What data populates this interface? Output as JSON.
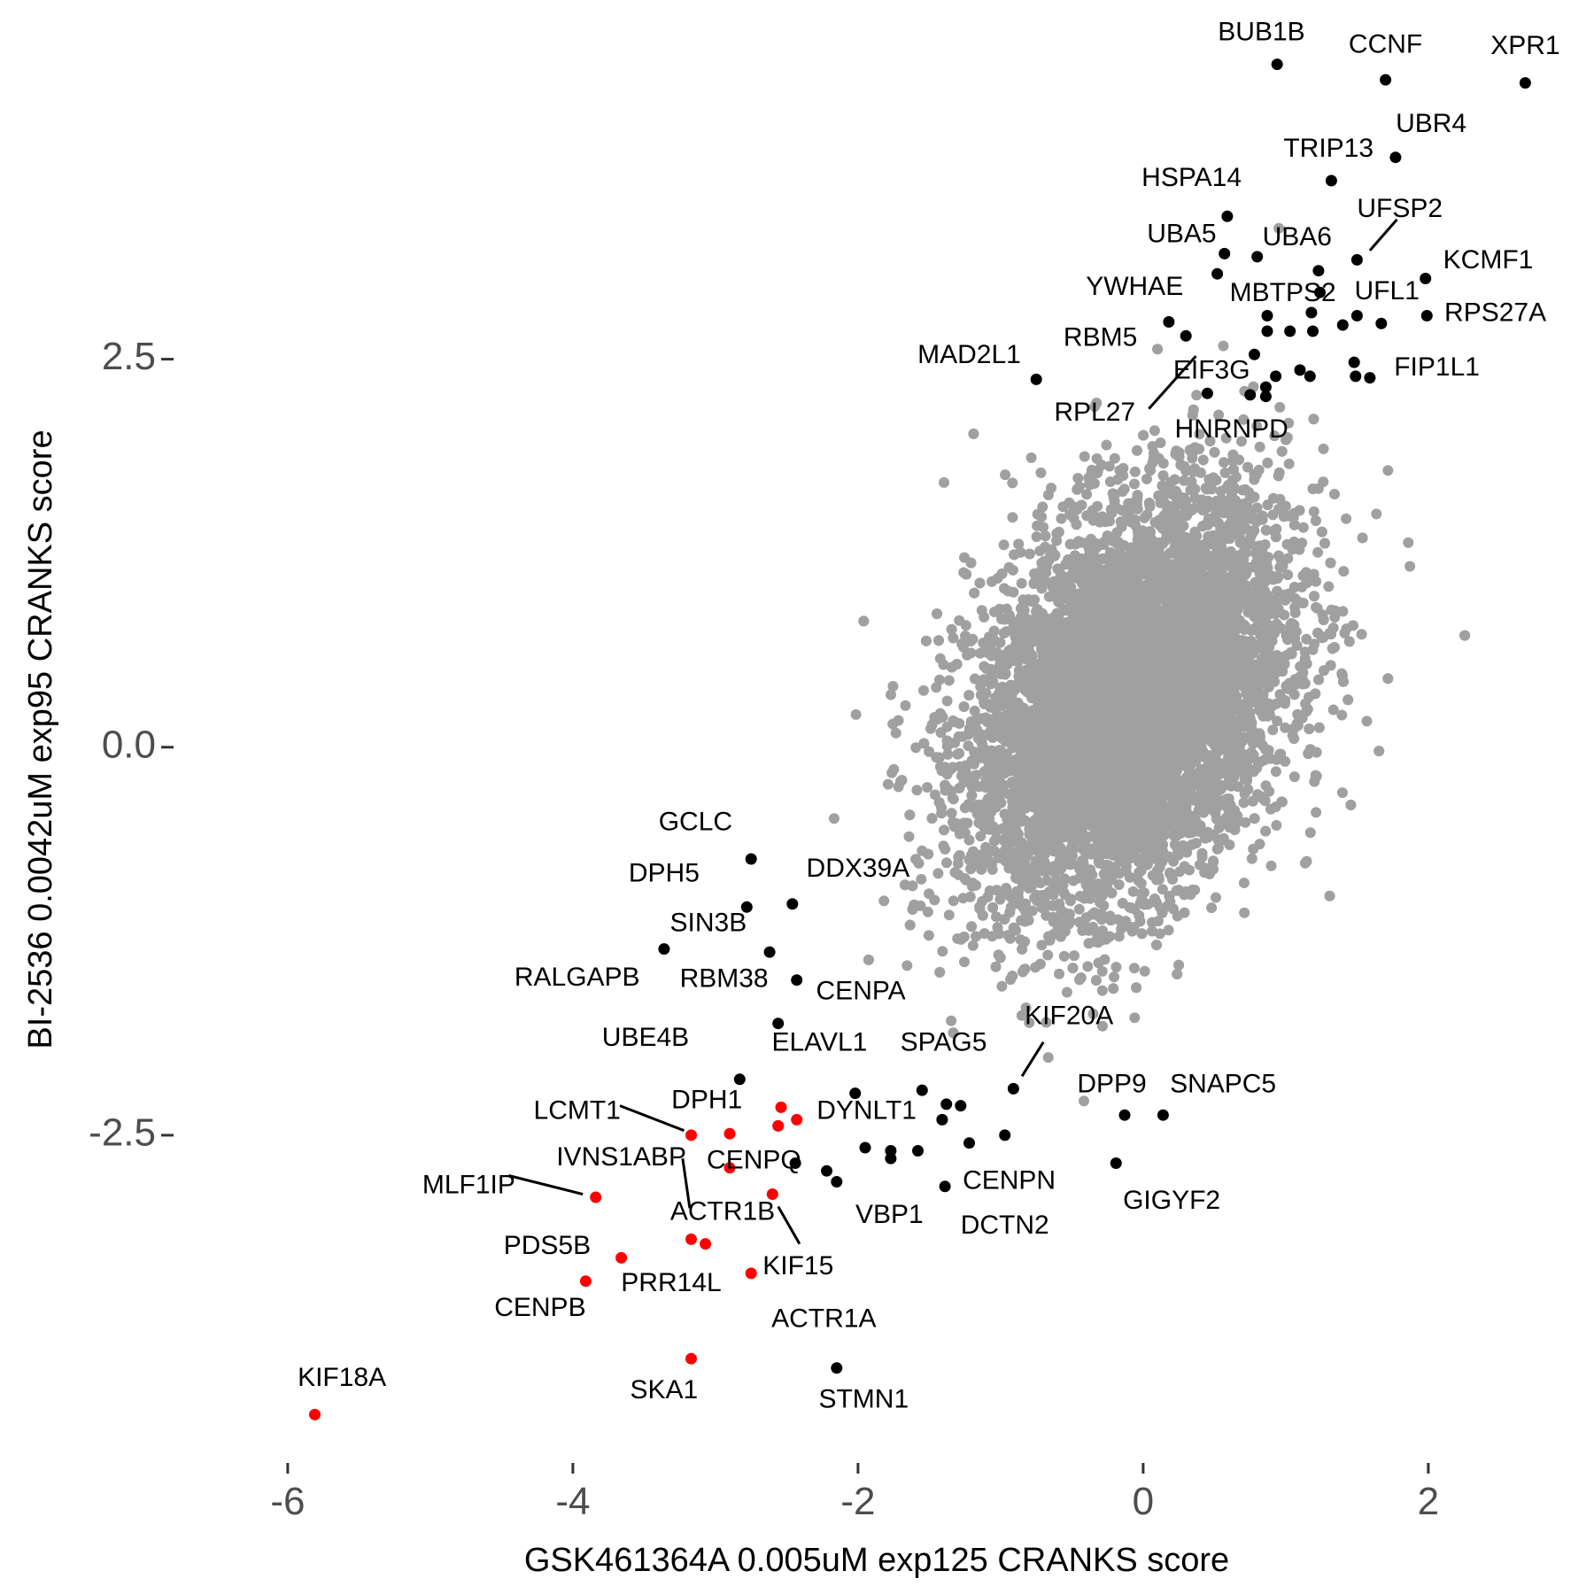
{
  "chart_data": {
    "type": "scatter",
    "xlabel": "GSK461364A 0.005uM exp125 CRANKS score",
    "ylabel": "BI-2536 0.0042uM exp95 CRANKS score",
    "xlim": [
      -6.9,
      3.1
    ],
    "ylim": [
      -4.6,
      4.7
    ],
    "x_ticks": [
      -6,
      -4,
      -2,
      0,
      2
    ],
    "x_tick_labels": [
      "-6",
      "-4",
      "-2",
      "0",
      "2"
    ],
    "y_ticks": [
      -2.5,
      0.0,
      2.5
    ],
    "y_tick_labels": [
      "-2.5",
      "0.0",
      "2.5"
    ],
    "grid": false,
    "legend": "none",
    "colors": {
      "background_genes": "#a0a0a0",
      "positive_hits": "#000000",
      "negative_hits": "#ff0000"
    },
    "background_cloud": {
      "description_points": "dense cloud of all other genes",
      "center": [
        -0.1,
        0.3
      ],
      "sd": [
        0.55,
        0.65
      ],
      "correlation": 0.35,
      "count": 9000,
      "color": "#a0a0a0"
    },
    "series": [
      {
        "group": "positive",
        "color": "#000000",
        "points": [
          {
            "label": "BUB1B",
            "x": 0.94,
            "y": 4.4
          },
          {
            "label": "CCNF",
            "x": 1.7,
            "y": 4.3
          },
          {
            "label": "XPR1",
            "x": 2.68,
            "y": 4.28
          },
          {
            "label": "UBR4",
            "x": 1.77,
            "y": 3.8
          },
          {
            "label": "TRIP13",
            "x": 1.32,
            "y": 3.65
          },
          {
            "label": "HSPA14",
            "x": 0.59,
            "y": 3.42
          },
          {
            "label": "UFSP2",
            "x": 1.5,
            "y": 3.14
          },
          {
            "label": "UBA5",
            "x": 0.57,
            "y": 3.18
          },
          {
            "label": "UBA6",
            "x": 0.8,
            "y": 3.16
          },
          {
            "label": "KCMF1",
            "x": 1.98,
            "y": 3.02
          },
          {
            "label": "YWHAE",
            "x": 0.52,
            "y": 3.05
          },
          {
            "label": "MBTPS2",
            "x": 1.23,
            "y": 3.07
          },
          {
            "label": "UFL1",
            "x": 1.5,
            "y": 2.78
          },
          {
            "label": "RPS27A",
            "x": 1.99,
            "y": 2.78
          },
          {
            "label": "RBM5",
            "x": 0.18,
            "y": 2.74
          },
          {
            "label": "MAD2L1",
            "x": -0.75,
            "y": 2.37
          },
          {
            "label": "EIF3G",
            "x": 0.3,
            "y": 2.65
          },
          {
            "label": "FIP1L1",
            "x": 1.48,
            "y": 2.48
          },
          {
            "label": "RPL27",
            "x": 0.45,
            "y": 2.28
          },
          {
            "label": "HNRNPD",
            "x": 0.75,
            "y": 2.27
          },
          {
            "label": "GCLC",
            "x": -2.75,
            "y": -0.72
          },
          {
            "label": "DPH5",
            "x": -2.78,
            "y": -1.03
          },
          {
            "label": "DDX39A",
            "x": -2.46,
            "y": -1.01
          },
          {
            "label": "SIN3B",
            "x": -2.62,
            "y": -1.32
          },
          {
            "label": "RALGAPB",
            "x": -3.36,
            "y": -1.3
          },
          {
            "label": "RBM38",
            "x": -2.43,
            "y": -1.5
          },
          {
            "label": "CENPA",
            "x": -2.56,
            "y": -1.78
          },
          {
            "label": "UBE4B",
            "x": -2.83,
            "y": -2.14
          },
          {
            "label": "ELAVL1",
            "x": -2.02,
            "y": -2.23
          },
          {
            "label": "SPAG5",
            "x": -1.55,
            "y": -2.21
          },
          {
            "label": "KIF20A",
            "x": -0.91,
            "y": -2.2
          },
          {
            "label": "DYNLT1",
            "x": -1.95,
            "y": -2.58
          },
          {
            "label": "DPP9",
            "x": -0.13,
            "y": -2.37
          },
          {
            "label": "SNAPC5",
            "x": 0.14,
            "y": -2.37
          },
          {
            "label": "CENPN",
            "x": -0.97,
            "y": -2.5
          },
          {
            "label": "GIGYF2",
            "x": -0.19,
            "y": -2.68
          },
          {
            "label": "VBP1",
            "x": -2.15,
            "y": -2.8
          },
          {
            "label": "DCTN2",
            "x": -1.39,
            "y": -2.83
          },
          {
            "label": "STMN1",
            "x": -2.15,
            "y": -4.0
          },
          {
            "label": "",
            "x": -1.38,
            "y": -2.3
          },
          {
            "label": "",
            "x": -1.28,
            "y": -2.31
          },
          {
            "label": "",
            "x": -1.41,
            "y": -2.4
          },
          {
            "label": "",
            "x": -1.22,
            "y": -2.55
          },
          {
            "label": "",
            "x": -1.58,
            "y": -2.6
          },
          {
            "label": "",
            "x": -1.77,
            "y": -2.6
          },
          {
            "label": "",
            "x": -1.77,
            "y": -2.65
          },
          {
            "label": "",
            "x": -2.22,
            "y": -2.73
          },
          {
            "label": "",
            "x": -2.44,
            "y": -2.68
          },
          {
            "label": "",
            "x": 1.24,
            "y": 2.93
          },
          {
            "label": "",
            "x": 1.18,
            "y": 2.8
          },
          {
            "label": "",
            "x": 0.87,
            "y": 2.78
          },
          {
            "label": "",
            "x": 0.87,
            "y": 2.68
          },
          {
            "label": "",
            "x": 1.03,
            "y": 2.68
          },
          {
            "label": "",
            "x": 1.19,
            "y": 2.68
          },
          {
            "label": "",
            "x": 1.4,
            "y": 2.72
          },
          {
            "label": "",
            "x": 1.67,
            "y": 2.73
          },
          {
            "label": "",
            "x": 1.1,
            "y": 2.43
          },
          {
            "label": "",
            "x": 1.17,
            "y": 2.39
          },
          {
            "label": "",
            "x": 0.93,
            "y": 2.39
          },
          {
            "label": "",
            "x": 0.86,
            "y": 2.32
          },
          {
            "label": "",
            "x": 0.86,
            "y": 2.26
          },
          {
            "label": "",
            "x": 1.59,
            "y": 2.38
          },
          {
            "label": "",
            "x": 1.49,
            "y": 2.39
          },
          {
            "label": "",
            "x": 0.78,
            "y": 2.53
          }
        ]
      },
      {
        "group": "negative",
        "color": "#ff0000",
        "points": [
          {
            "label": "LCMT1",
            "x": -3.17,
            "y": -2.5
          },
          {
            "label": "DPH1",
            "x": -2.9,
            "y": -2.49
          },
          {
            "label": "IVNS1ABP",
            "x": -2.9,
            "y": -2.71
          },
          {
            "label": "CENPQ",
            "x": -2.54,
            "y": -2.32
          },
          {
            "label": "",
            "x": -2.56,
            "y": -2.44
          },
          {
            "label": "",
            "x": -2.43,
            "y": -2.4
          },
          {
            "label": "MLF1IP",
            "x": -3.84,
            "y": -2.9
          },
          {
            "label": "KIF15",
            "x": -2.6,
            "y": -2.88
          },
          {
            "label": "ACTR1B",
            "x": -3.17,
            "y": -3.17
          },
          {
            "label": "",
            "x": -3.07,
            "y": -3.2
          },
          {
            "label": "PDS5B",
            "x": -3.66,
            "y": -3.29
          },
          {
            "label": "PRR14L",
            "x": -2.75,
            "y": -3.39
          },
          {
            "label": "CENPB",
            "x": -3.91,
            "y": -3.44
          },
          {
            "label": "SKA1",
            "x": -3.17,
            "y": -3.94
          },
          {
            "label": "KIF18A",
            "x": -5.81,
            "y": -4.3
          }
        ]
      }
    ],
    "annotations": [
      {
        "text": "BUB1B",
        "x": 0.83,
        "y": 4.6,
        "anchor": "middle"
      },
      {
        "text": "CCNF",
        "x": 1.7,
        "y": 4.52,
        "anchor": "middle"
      },
      {
        "text": "XPR1",
        "x": 2.68,
        "y": 4.51,
        "anchor": "middle"
      },
      {
        "text": "UBR4",
        "x": 2.02,
        "y": 4.01,
        "anchor": "middle"
      },
      {
        "text": "TRIP13",
        "x": 1.3,
        "y": 3.85,
        "anchor": "middle"
      },
      {
        "text": "HSPA14",
        "x": 0.34,
        "y": 3.66,
        "anchor": "middle"
      },
      {
        "text": "UFSP2",
        "x": 1.8,
        "y": 3.46,
        "anchor": "middle"
      },
      {
        "text": "UBA5",
        "x": 0.27,
        "y": 3.3,
        "anchor": "middle"
      },
      {
        "text": "UBA6",
        "x": 1.08,
        "y": 3.28,
        "anchor": "middle"
      },
      {
        "text": "KCMF1",
        "x": 2.42,
        "y": 3.13,
        "anchor": "middle"
      },
      {
        "text": "YWHAE",
        "x": -0.06,
        "y": 2.96,
        "anchor": "middle"
      },
      {
        "text": "MBTPS2",
        "x": 0.98,
        "y": 2.92,
        "anchor": "middle"
      },
      {
        "text": "UFL1",
        "x": 1.71,
        "y": 2.93,
        "anchor": "middle"
      },
      {
        "text": "RPS27A",
        "x": 2.47,
        "y": 2.79,
        "anchor": "middle"
      },
      {
        "text": "RBM5",
        "x": -0.3,
        "y": 2.63,
        "anchor": "middle"
      },
      {
        "text": "MAD2L1",
        "x": -1.22,
        "y": 2.52,
        "anchor": "middle"
      },
      {
        "text": "EIF3G",
        "x": 0.48,
        "y": 2.42,
        "anchor": "middle"
      },
      {
        "text": "FIP1L1",
        "x": 2.06,
        "y": 2.44,
        "anchor": "middle"
      },
      {
        "text": "RPL27",
        "x": -0.34,
        "y": 2.15,
        "anchor": "middle"
      },
      {
        "text": "HNRNPD",
        "x": 0.62,
        "y": 2.04,
        "anchor": "middle"
      },
      {
        "text": "GCLC",
        "x": -3.14,
        "y": -0.49,
        "anchor": "middle"
      },
      {
        "text": "DPH5",
        "x": -3.36,
        "y": -0.82,
        "anchor": "middle"
      },
      {
        "text": "DDX39A",
        "x": -2.0,
        "y": -0.79,
        "anchor": "middle"
      },
      {
        "text": "SIN3B",
        "x": -3.05,
        "y": -1.14,
        "anchor": "middle"
      },
      {
        "text": "RALGAPB",
        "x": -3.97,
        "y": -1.49,
        "anchor": "middle"
      },
      {
        "text": "RBM38",
        "x": -2.94,
        "y": -1.5,
        "anchor": "middle"
      },
      {
        "text": "CENPA",
        "x": -1.98,
        "y": -1.58,
        "anchor": "middle"
      },
      {
        "text": "UBE4B",
        "x": -3.49,
        "y": -1.88,
        "anchor": "middle"
      },
      {
        "text": "ELAVL1",
        "x": -2.27,
        "y": -1.91,
        "anchor": "middle"
      },
      {
        "text": "SPAG5",
        "x": -1.4,
        "y": -1.91,
        "anchor": "middle"
      },
      {
        "text": "KIF20A",
        "x": -0.52,
        "y": -1.74,
        "anchor": "middle"
      },
      {
        "text": "LCMT1",
        "x": -3.97,
        "y": -2.35,
        "anchor": "middle"
      },
      {
        "text": "DPH1",
        "x": -3.06,
        "y": -2.28,
        "anchor": "middle"
      },
      {
        "text": "DYNLT1",
        "x": -1.94,
        "y": -2.35,
        "anchor": "middle"
      },
      {
        "text": "DPP9",
        "x": -0.22,
        "y": -2.18,
        "anchor": "middle"
      },
      {
        "text": "SNAPC5",
        "x": 0.56,
        "y": -2.18,
        "anchor": "middle"
      },
      {
        "text": "IVNS1ABP",
        "x": -3.66,
        "y": -2.65,
        "anchor": "middle"
      },
      {
        "text": "CENPQ",
        "x": -2.73,
        "y": -2.67,
        "anchor": "middle"
      },
      {
        "text": "CENPN",
        "x": -0.94,
        "y": -2.8,
        "anchor": "middle"
      },
      {
        "text": "MLF1IP",
        "x": -4.73,
        "y": -2.83,
        "anchor": "middle"
      },
      {
        "text": "ACTR1B",
        "x": -2.95,
        "y": -3.0,
        "anchor": "middle"
      },
      {
        "text": "GIGYF2",
        "x": 0.2,
        "y": -2.93,
        "anchor": "middle"
      },
      {
        "text": "VBP1",
        "x": -1.78,
        "y": -3.02,
        "anchor": "middle"
      },
      {
        "text": "DCTN2",
        "x": -0.97,
        "y": -3.09,
        "anchor": "middle"
      },
      {
        "text": "PDS5B",
        "x": -4.18,
        "y": -3.22,
        "anchor": "middle"
      },
      {
        "text": "KIF15",
        "x": -2.42,
        "y": -3.35,
        "anchor": "middle"
      },
      {
        "text": "PRR14L",
        "x": -3.31,
        "y": -3.46,
        "anchor": "middle"
      },
      {
        "text": "CENPB",
        "x": -4.23,
        "y": -3.62,
        "anchor": "middle"
      },
      {
        "text": "ACTR1A",
        "x": -2.24,
        "y": -3.69,
        "anchor": "middle"
      },
      {
        "text": "SKA1",
        "x": -3.36,
        "y": -4.15,
        "anchor": "middle"
      },
      {
        "text": "STMN1",
        "x": -1.96,
        "y": -4.21,
        "anchor": "middle"
      },
      {
        "text": "KIF18A",
        "x": -5.62,
        "y": -4.07,
        "anchor": "middle"
      }
    ],
    "leader_lines": [
      {
        "x1": 1.78,
        "y1": 3.4,
        "x2": 1.59,
        "y2": 3.2
      },
      {
        "x1": 0.37,
        "y1": 2.52,
        "x2": 0.04,
        "y2": 2.18
      },
      {
        "x1": -0.7,
        "y1": -1.9,
        "x2": -0.85,
        "y2": -2.12
      },
      {
        "x1": -3.67,
        "y1": -2.31,
        "x2": -3.22,
        "y2": -2.47
      },
      {
        "x1": -4.45,
        "y1": -2.76,
        "x2": -3.93,
        "y2": -2.88
      },
      {
        "x1": -3.23,
        "y1": -2.65,
        "x2": -3.18,
        "y2": -2.97
      },
      {
        "x1": -2.56,
        "y1": -2.96,
        "x2": -2.41,
        "y2": -3.2
      }
    ]
  }
}
